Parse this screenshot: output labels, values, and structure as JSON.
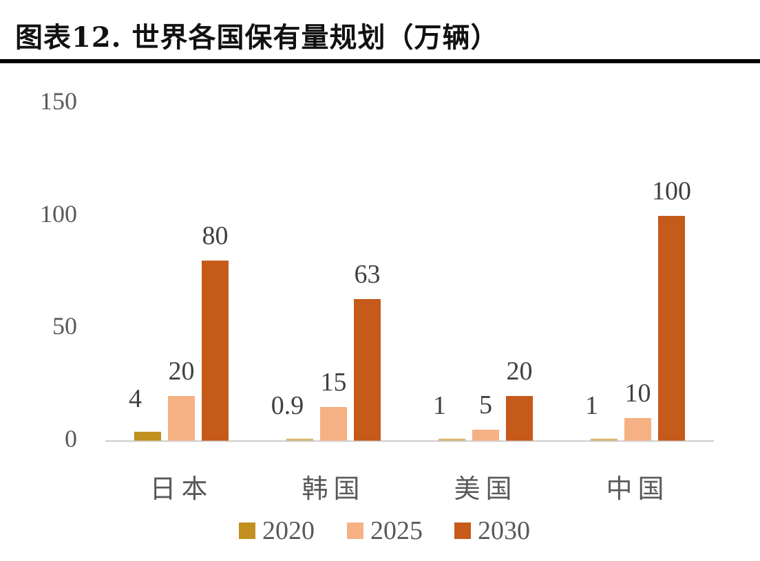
{
  "title": "图表12. 世界各国保有量规划（万辆）",
  "chart_data": {
    "type": "bar",
    "title": "世界各国保有量规划（万辆）",
    "xlabel": "",
    "ylabel": "万辆",
    "ylim": [
      0,
      150
    ],
    "yticks": [
      0,
      50,
      100,
      150
    ],
    "grid": false,
    "legend_position": "bottom",
    "categories": [
      "日本",
      "韩国",
      "美国",
      "中国"
    ],
    "series": [
      {
        "name": "2020",
        "color": "#c2901e",
        "values": [
          4,
          0.9,
          1,
          1
        ],
        "labels": [
          "4",
          "0.9",
          "1",
          "1"
        ]
      },
      {
        "name": "2025",
        "color": "#f5b183",
        "values": [
          20,
          15,
          5,
          10
        ],
        "labels": [
          "20",
          "15",
          "5",
          "10"
        ]
      },
      {
        "name": "2030",
        "color": "#c55a1a",
        "values": [
          80,
          63,
          20,
          100
        ],
        "labels": [
          "80",
          "63",
          "20",
          "100"
        ]
      }
    ]
  }
}
